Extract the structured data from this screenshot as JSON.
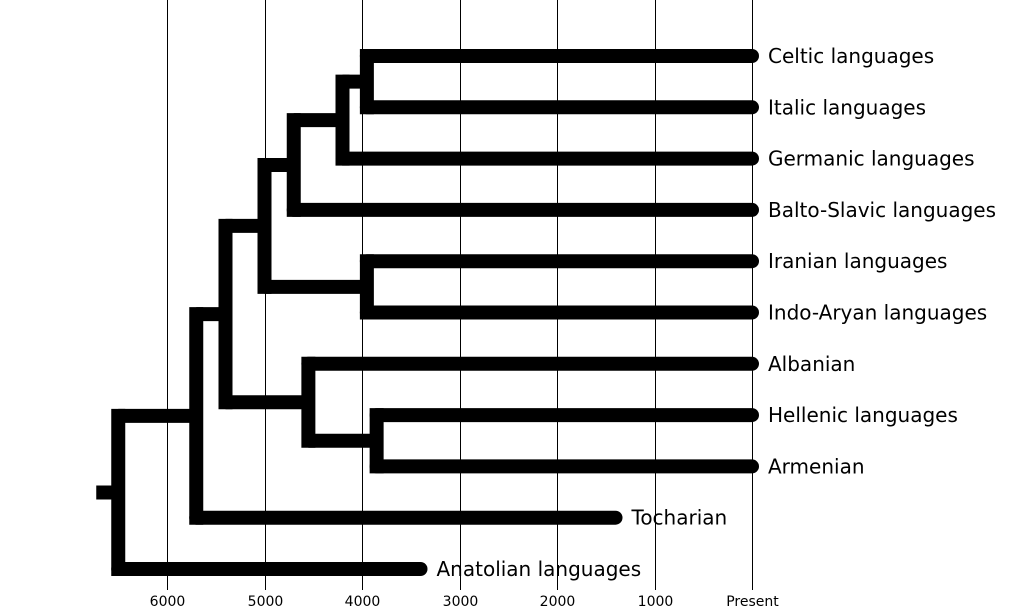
{
  "axis": {
    "ticks": [
      {
        "value": 6000,
        "label": "6000"
      },
      {
        "value": 5000,
        "label": "5000"
      },
      {
        "value": 4000,
        "label": "4000"
      },
      {
        "value": 3000,
        "label": "3000"
      },
      {
        "value": 2000,
        "label": "2000"
      },
      {
        "value": 1000,
        "label": "1000"
      },
      {
        "value": 0,
        "label": "Present"
      }
    ]
  },
  "tree": {
    "node": "root",
    "years_ago": 6500,
    "children": [
      {
        "node": "n1",
        "years_ago": 5700,
        "children": [
          {
            "node": "n2",
            "years_ago": 5400,
            "children": [
              {
                "node": "n3",
                "years_ago": 5000,
                "children": [
                  {
                    "node": "n4",
                    "years_ago": 4700,
                    "children": [
                      {
                        "node": "n5",
                        "years_ago": 4200,
                        "children": [
                          {
                            "node": "n6",
                            "years_ago": 3950,
                            "children": [
                              {
                                "leaf": "Celtic languages",
                                "years_ago": 0
                              },
                              {
                                "leaf": "Italic languages",
                                "years_ago": 0
                              }
                            ]
                          },
                          {
                            "leaf": "Germanic languages",
                            "years_ago": 0
                          }
                        ]
                      },
                      {
                        "leaf": "Balto-Slavic languages",
                        "years_ago": 0
                      }
                    ]
                  },
                  {
                    "node": "n7",
                    "years_ago": 3950,
                    "children": [
                      {
                        "leaf": "Iranian languages",
                        "years_ago": 0
                      },
                      {
                        "leaf": "Indo-Aryan languages",
                        "years_ago": 0
                      }
                    ]
                  }
                ]
              },
              {
                "node": "n8",
                "years_ago": 4550,
                "children": [
                  {
                    "leaf": "Albanian",
                    "years_ago": 0
                  },
                  {
                    "node": "n9",
                    "years_ago": 3850,
                    "children": [
                      {
                        "leaf": "Hellenic languages",
                        "years_ago": 0
                      },
                      {
                        "leaf": "Armenian",
                        "years_ago": 0
                      }
                    ]
                  }
                ]
              }
            ]
          },
          {
            "leaf": "Tocharian",
            "years_ago": 1400
          }
        ]
      },
      {
        "leaf": "Anatolian languages",
        "years_ago": 3400
      }
    ]
  }
}
